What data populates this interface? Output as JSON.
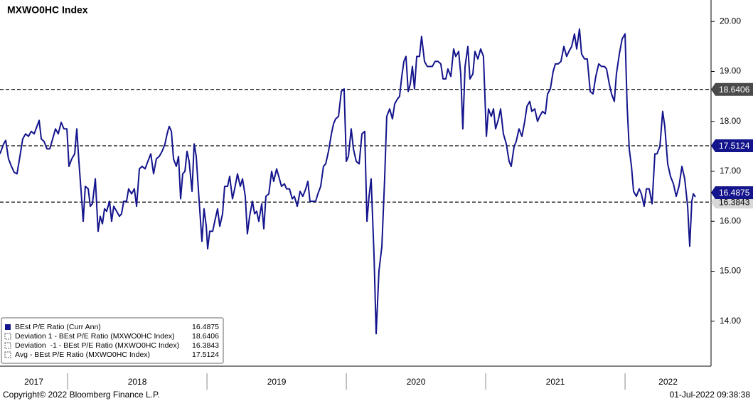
{
  "chart_data": {
    "type": "line",
    "title": "MXWO0HC Index",
    "x": [
      2017.515,
      2017.541,
      2017.556,
      2017.576,
      2017.597,
      2017.617,
      2017.637,
      2017.658,
      2017.678,
      2017.699,
      2017.719,
      2017.739,
      2017.76,
      2017.78,
      2017.796,
      2017.811,
      2017.831,
      2017.852,
      2017.872,
      2017.893,
      2017.913,
      2017.933,
      2017.954,
      2017.974,
      2017.995,
      2018.01,
      2018.03,
      2018.051,
      2018.066,
      2018.081,
      2018.097,
      2018.112,
      2018.127,
      2018.148,
      2018.163,
      2018.178,
      2018.199,
      2018.219,
      2018.234,
      2018.25,
      2018.265,
      2018.28,
      2018.301,
      2018.316,
      2018.331,
      2018.352,
      2018.372,
      2018.387,
      2018.403,
      2018.423,
      2018.438,
      2018.459,
      2018.479,
      2018.495,
      2018.515,
      2018.535,
      2018.556,
      2018.576,
      2018.597,
      2018.617,
      2018.637,
      2018.658,
      2018.678,
      2018.699,
      2018.714,
      2018.729,
      2018.745,
      2018.76,
      2018.78,
      2018.796,
      2018.811,
      2018.826,
      2018.842,
      2018.857,
      2018.872,
      2018.893,
      2018.908,
      2018.923,
      2018.944,
      2018.964,
      2018.979,
      2018.995,
      2019.005,
      2019.02,
      2019.041,
      2019.056,
      2019.076,
      2019.092,
      2019.112,
      2019.127,
      2019.148,
      2019.163,
      2019.183,
      2019.199,
      2019.219,
      2019.239,
      2019.255,
      2019.275,
      2019.29,
      2019.306,
      2019.326,
      2019.342,
      2019.357,
      2019.372,
      2019.393,
      2019.408,
      2019.423,
      2019.444,
      2019.464,
      2019.479,
      2019.5,
      2019.515,
      2019.535,
      2019.556,
      2019.571,
      2019.592,
      2019.612,
      2019.627,
      2019.648,
      2019.668,
      2019.688,
      2019.709,
      2019.724,
      2019.739,
      2019.76,
      2019.78,
      2019.796,
      2019.816,
      2019.836,
      2019.852,
      2019.872,
      2019.893,
      2019.908,
      2019.923,
      2019.944,
      2019.964,
      2019.984,
      2020.0,
      2020.015,
      2020.035,
      2020.051,
      2020.071,
      2020.092,
      2020.112,
      2020.132,
      2020.148,
      2020.163,
      2020.178,
      2020.199,
      2020.214,
      2020.234,
      2020.255,
      2020.275,
      2020.29,
      2020.311,
      2020.331,
      2020.347,
      2020.367,
      2020.382,
      2020.398,
      2020.413,
      2020.428,
      2020.444,
      2020.459,
      2020.474,
      2020.489,
      2020.505,
      2020.525,
      2020.54,
      2020.561,
      2020.581,
      2020.597,
      2020.617,
      2020.637,
      2020.658,
      2020.678,
      2020.694,
      2020.714,
      2020.729,
      2020.75,
      2020.77,
      2020.785,
      2020.806,
      2020.821,
      2020.836,
      2020.852,
      2020.872,
      2020.887,
      2020.908,
      2020.923,
      2020.944,
      2020.964,
      2020.984,
      2021.005,
      2021.02,
      2021.04,
      2021.056,
      2021.071,
      2021.092,
      2021.107,
      2021.127,
      2021.148,
      2021.168,
      2021.183,
      2021.204,
      2021.219,
      2021.239,
      2021.26,
      2021.28,
      2021.296,
      2021.316,
      2021.331,
      2021.352,
      2021.372,
      2021.387,
      2021.408,
      2021.428,
      2021.444,
      2021.464,
      2021.484,
      2021.5,
      2021.52,
      2021.54,
      2021.561,
      2021.581,
      2021.597,
      2021.617,
      2021.637,
      2021.653,
      2021.673,
      2021.688,
      2021.709,
      2021.729,
      2021.75,
      2021.77,
      2021.79,
      2021.811,
      2021.831,
      2021.852,
      2021.867,
      2021.887,
      2021.903,
      2021.923,
      2021.938,
      2021.959,
      2021.979,
      2022.0,
      2022.015,
      2022.03,
      2022.046,
      2022.061,
      2022.081,
      2022.102,
      2022.117,
      2022.137,
      2022.153,
      2022.173,
      2022.194,
      2022.214,
      2022.229,
      2022.25,
      2022.27,
      2022.285,
      2022.306,
      2022.326,
      2022.347,
      2022.367,
      2022.387,
      2022.408,
      2022.428,
      2022.449,
      2022.464,
      2022.479,
      2022.49,
      2022.505
    ],
    "series": [
      {
        "name": "BEst P/E Ratio (Curr Ann)",
        "color": "#14148c",
        "values": [
          17.35,
          17.55,
          17.62,
          17.25,
          17.1,
          16.98,
          16.95,
          17.3,
          17.65,
          17.75,
          17.7,
          17.8,
          17.75,
          17.9,
          18.02,
          17.65,
          17.6,
          17.45,
          17.45,
          17.65,
          17.85,
          17.75,
          17.98,
          17.85,
          17.85,
          17.1,
          17.25,
          17.35,
          17.85,
          17.2,
          16.6,
          16.0,
          16.7,
          16.65,
          16.3,
          16.35,
          16.85,
          15.8,
          16.1,
          15.95,
          16.25,
          16.2,
          16.4,
          16.0,
          16.3,
          16.2,
          16.1,
          16.15,
          16.4,
          16.4,
          16.65,
          16.55,
          16.65,
          16.3,
          17.05,
          17.1,
          17.05,
          17.2,
          17.35,
          16.95,
          17.25,
          17.3,
          17.4,
          17.55,
          17.75,
          17.9,
          17.8,
          17.25,
          17.1,
          17.3,
          16.45,
          16.95,
          17.0,
          17.4,
          17.2,
          16.6,
          17.55,
          17.3,
          16.4,
          15.6,
          16.25,
          15.9,
          15.45,
          15.8,
          15.8,
          16.0,
          16.25,
          15.9,
          16.15,
          16.7,
          16.7,
          16.9,
          16.45,
          16.65,
          16.95,
          16.7,
          16.85,
          16.5,
          15.75,
          16.1,
          16.4,
          16.15,
          16.2,
          16.0,
          16.35,
          15.85,
          16.5,
          16.55,
          17.0,
          16.8,
          17.05,
          16.9,
          16.7,
          16.75,
          16.65,
          16.65,
          16.45,
          16.5,
          16.3,
          16.6,
          16.5,
          16.65,
          16.8,
          16.4,
          16.4,
          16.4,
          16.55,
          16.7,
          17.1,
          17.15,
          17.4,
          17.75,
          17.95,
          18.05,
          18.1,
          18.6,
          18.65,
          17.2,
          17.3,
          17.85,
          17.45,
          17.2,
          17.15,
          17.75,
          17.8,
          16.0,
          16.5,
          16.85,
          15.3,
          13.75,
          15.0,
          15.5,
          16.85,
          18.1,
          18.25,
          18.05,
          18.35,
          18.45,
          18.5,
          18.9,
          19.2,
          19.3,
          18.6,
          18.75,
          19.1,
          18.65,
          19.3,
          19.3,
          19.7,
          19.2,
          19.1,
          19.1,
          19.1,
          19.2,
          19.2,
          19.15,
          18.85,
          18.85,
          19.05,
          18.9,
          19.45,
          19.3,
          19.4,
          18.95,
          17.85,
          19.1,
          19.5,
          18.85,
          18.95,
          19.4,
          19.25,
          19.45,
          19.3,
          17.7,
          18.25,
          18.1,
          18.25,
          17.85,
          18.05,
          18.25,
          17.75,
          17.55,
          17.2,
          17.1,
          17.5,
          17.6,
          17.85,
          17.7,
          18.0,
          18.3,
          18.4,
          18.2,
          18.25,
          18.0,
          18.1,
          18.2,
          18.15,
          18.55,
          18.65,
          19.0,
          19.15,
          19.15,
          19.2,
          19.5,
          19.3,
          19.4,
          19.5,
          19.75,
          19.45,
          19.85,
          19.35,
          19.25,
          19.25,
          18.6,
          18.55,
          18.9,
          19.15,
          19.1,
          19.1,
          19.05,
          18.75,
          18.55,
          18.4,
          18.95,
          19.35,
          19.65,
          19.75,
          18.3,
          17.45,
          17.1,
          16.6,
          16.5,
          16.65,
          16.55,
          16.3,
          16.65,
          16.65,
          16.35,
          17.35,
          17.35,
          17.5,
          18.2,
          17.9,
          17.15,
          16.9,
          16.75,
          16.5,
          16.7,
          17.1,
          16.85,
          16.3,
          15.5,
          16.4,
          16.55,
          16.4875
        ]
      }
    ],
    "reference_lines": [
      {
        "name": "Deviation 1 - BEst P/E Ratio (MXWO0HC Index)",
        "value": 18.6406,
        "color": "#4a4a4a"
      },
      {
        "name": "Deviation  -1 - BEst P/E Ratio (MXWO0HC Index)",
        "value": 16.3843,
        "color": "#d8d8d8"
      },
      {
        "name": "Avg - BEst P/E Ratio (MXWO0HC Index)",
        "value": 17.5124,
        "color": "#14148c"
      }
    ],
    "xlim": [
      2017.515,
      2022.617
    ],
    "xticks": [
      2018,
      2019,
      2020,
      2021,
      2022
    ],
    "x_labels": [
      "2017",
      "2018",
      "2019",
      "2020",
      "2021",
      "2022"
    ],
    "ylim": [
      13.1,
      20.43
    ],
    "yticks": [
      {
        "value": 14,
        "label": "14.00"
      },
      {
        "value": 15,
        "label": "15.00"
      },
      {
        "value": 16,
        "label": "16.00"
      },
      {
        "value": 17,
        "label": "17.00"
      },
      {
        "value": 18,
        "label": "18.00"
      },
      {
        "value": 19,
        "label": "19.00"
      },
      {
        "value": 20,
        "label": "20.00"
      }
    ],
    "footer_left": "Copyright© 2022 Bloomberg Finance L.P.",
    "footer_right": "01-Jul-2022 09:38:38"
  }
}
